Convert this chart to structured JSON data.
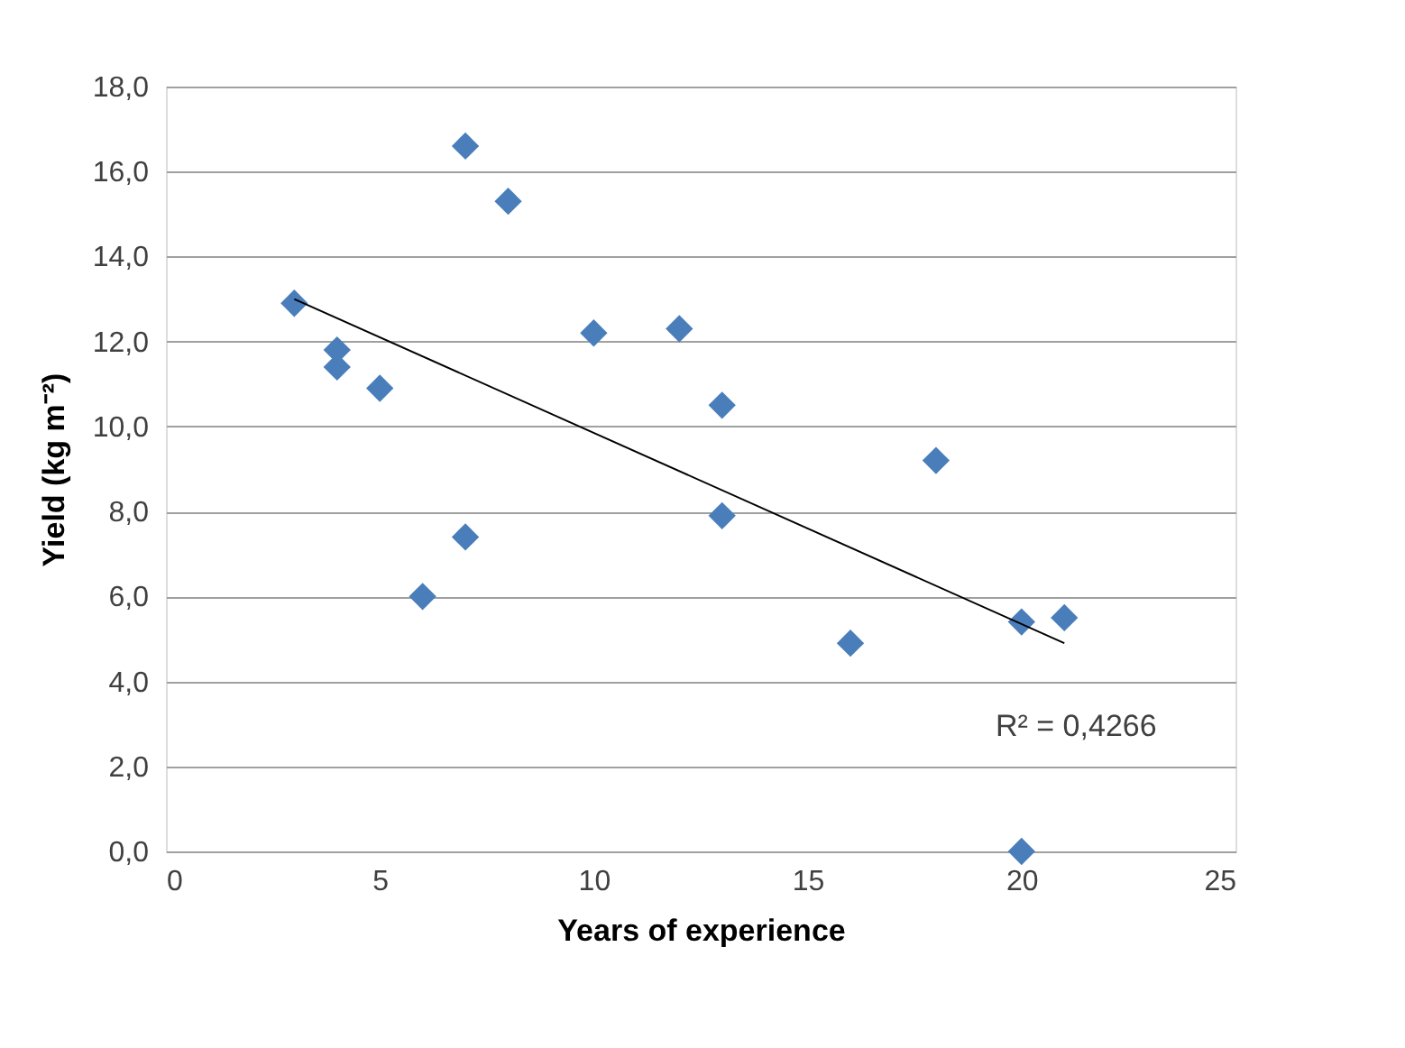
{
  "chart_data": {
    "type": "scatter",
    "xlabel": "Years of experience",
    "ylabel": "Yield (kg m⁻²)",
    "series": [
      {
        "color": "#4a7ebb",
        "x": [
          3,
          4,
          4,
          5,
          6,
          7,
          7,
          8,
          10,
          12,
          13,
          13,
          16,
          18,
          20,
          20,
          21
        ],
        "values": [
          12.9,
          11.8,
          11.4,
          10.9,
          6.0,
          16.6,
          7.4,
          15.3,
          12.2,
          12.3,
          10.5,
          7.9,
          4.9,
          9.2,
          5.4,
          0.0,
          5.5
        ]
      },
      {
        "type": "line",
        "marker": "none",
        "color": "#000000",
        "x": [
          3,
          21
        ],
        "values": [
          13.0,
          4.9
        ]
      }
    ],
    "xlim": [
      0,
      25
    ],
    "xticks": [
      0,
      5,
      10,
      15,
      20,
      25
    ],
    "ylim": [
      0,
      18
    ],
    "yticks": [
      {
        "value": 0,
        "label": "0,0"
      },
      {
        "value": 2,
        "label": "2,0"
      },
      {
        "value": 4,
        "label": "4,0"
      },
      {
        "value": 6,
        "label": "6,0"
      },
      {
        "value": 8,
        "label": "8,0"
      },
      {
        "value": 10,
        "label": "10,0"
      },
      {
        "value": 12,
        "label": "12,0"
      },
      {
        "value": 14,
        "label": "14,0"
      },
      {
        "value": 16,
        "label": "16,0"
      },
      {
        "value": 18,
        "label": "18,0"
      }
    ],
    "grid": "y",
    "marker": "diamond",
    "annotations": [
      "R² = 0,4266"
    ]
  }
}
